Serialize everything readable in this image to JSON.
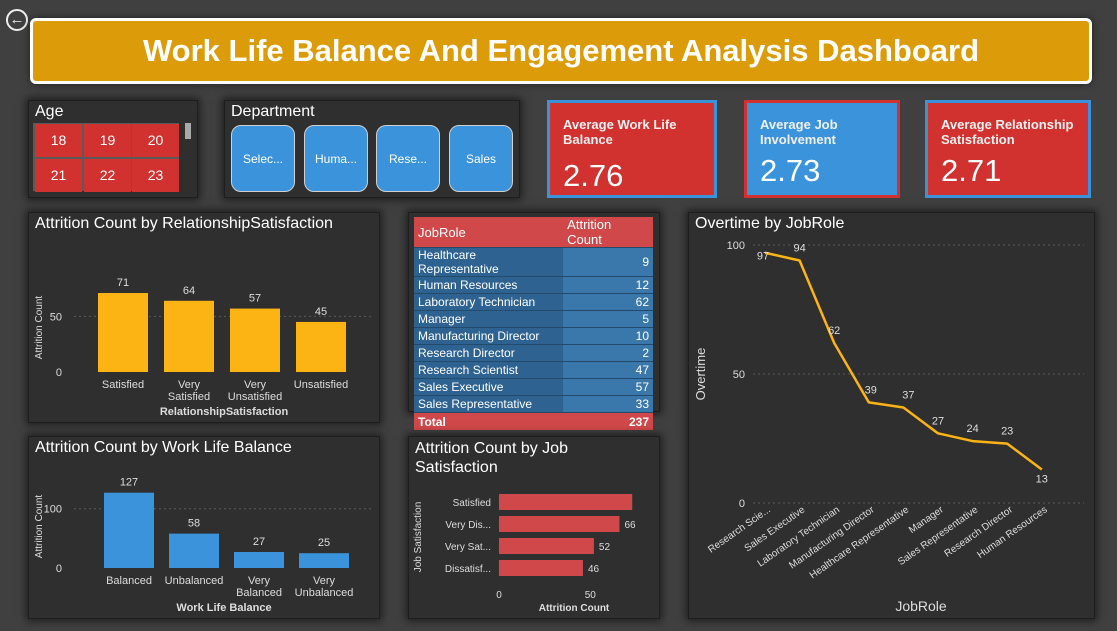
{
  "header": {
    "title": "Work Life Balance And Engagement Analysis Dashboard"
  },
  "age_slicer": {
    "title": "Age",
    "values": [
      "18",
      "19",
      "20",
      "21",
      "22",
      "23"
    ]
  },
  "department_slicer": {
    "title": "Department",
    "buttons": [
      "Selec...",
      "Huma...",
      "Rese...",
      "Sales"
    ]
  },
  "kpis": [
    {
      "label_line1": "Average Work Life",
      "label_line2": "Balance",
      "value": "2.76",
      "color": "#d1312f",
      "border": "#3b93dc"
    },
    {
      "label_line1": "Average Job",
      "label_line2": "Involvement",
      "value": "2.73",
      "color": "#3b93dc",
      "border": "#d1312f"
    },
    {
      "label_line1": "Average Relationship",
      "label_line2": "Satisfaction",
      "value": "2.71",
      "color": "#d1312f",
      "border": "#3b93dc"
    }
  ],
  "jobrole_table": {
    "headers": [
      "JobRole",
      "Attrition Count"
    ],
    "rows": [
      [
        "Healthcare Representative",
        "9"
      ],
      [
        "Human Resources",
        "12"
      ],
      [
        "Laboratory Technician",
        "62"
      ],
      [
        "Manager",
        "5"
      ],
      [
        "Manufacturing Director",
        "10"
      ],
      [
        "Research Director",
        "2"
      ],
      [
        "Research Scientist",
        "47"
      ],
      [
        "Sales Executive",
        "57"
      ],
      [
        "Sales Representative",
        "33"
      ]
    ],
    "total_label": "Total",
    "total_value": "237"
  },
  "chart_data": [
    {
      "type": "bar",
      "title": "Attrition Count by RelationshipSatisfaction",
      "xlabel": "RelationshipSatisfaction",
      "ylabel": "Attrition Count",
      "categories": [
        [
          "Satisfied"
        ],
        [
          "Very",
          "Satisfied"
        ],
        [
          "Very",
          "Unsatisfied"
        ],
        [
          "Unsatisfied"
        ]
      ],
      "values": [
        71,
        64,
        57,
        45
      ],
      "yticks": [
        0,
        50
      ],
      "ylim": [
        0,
        80
      ],
      "color": "#fbb414",
      "grid": true
    },
    {
      "type": "bar",
      "title": "Attrition Count by Work Life Balance",
      "xlabel": "Work Life Balance",
      "ylabel": "Attrition Count",
      "categories": [
        [
          "Balanced"
        ],
        [
          "Unbalanced"
        ],
        [
          "Very",
          "Balanced"
        ],
        [
          "Very",
          "Unbalanced"
        ]
      ],
      "values": [
        127,
        58,
        27,
        25
      ],
      "yticks": [
        0,
        100
      ],
      "ylim": [
        0,
        140
      ],
      "color": "#3b93dc",
      "grid": true
    },
    {
      "type": "bar",
      "orientation": "horizontal",
      "title": "Attrition Count by Job Satisfaction",
      "xlabel": "Attrition Count",
      "ylabel": "Job Satisfaction",
      "categories": [
        "Satisfied",
        "Very Dis...",
        "Very Sat...",
        "Dissatisf..."
      ],
      "values": [
        73,
        66,
        52,
        46
      ],
      "xticks": [
        0,
        50
      ],
      "xlim": [
        0,
        80
      ],
      "color": "#d1484a",
      "grid": false
    },
    {
      "type": "line",
      "title": "Overtime by JobRole",
      "xlabel": "JobRole",
      "ylabel": "Overtime",
      "categories": [
        "Research Scie...",
        "Sales Executive",
        "Laboratory Technician",
        "Manufacturing Director",
        "Healthcare Representative",
        "Manager",
        "Sales Representative",
        "Research Director",
        "Human Resources"
      ],
      "values": [
        97,
        94,
        62,
        39,
        37,
        27,
        24,
        23,
        13
      ],
      "yticks": [
        0,
        50,
        100
      ],
      "ylim": [
        0,
        100
      ],
      "color": "#fbb414",
      "grid": true
    }
  ]
}
